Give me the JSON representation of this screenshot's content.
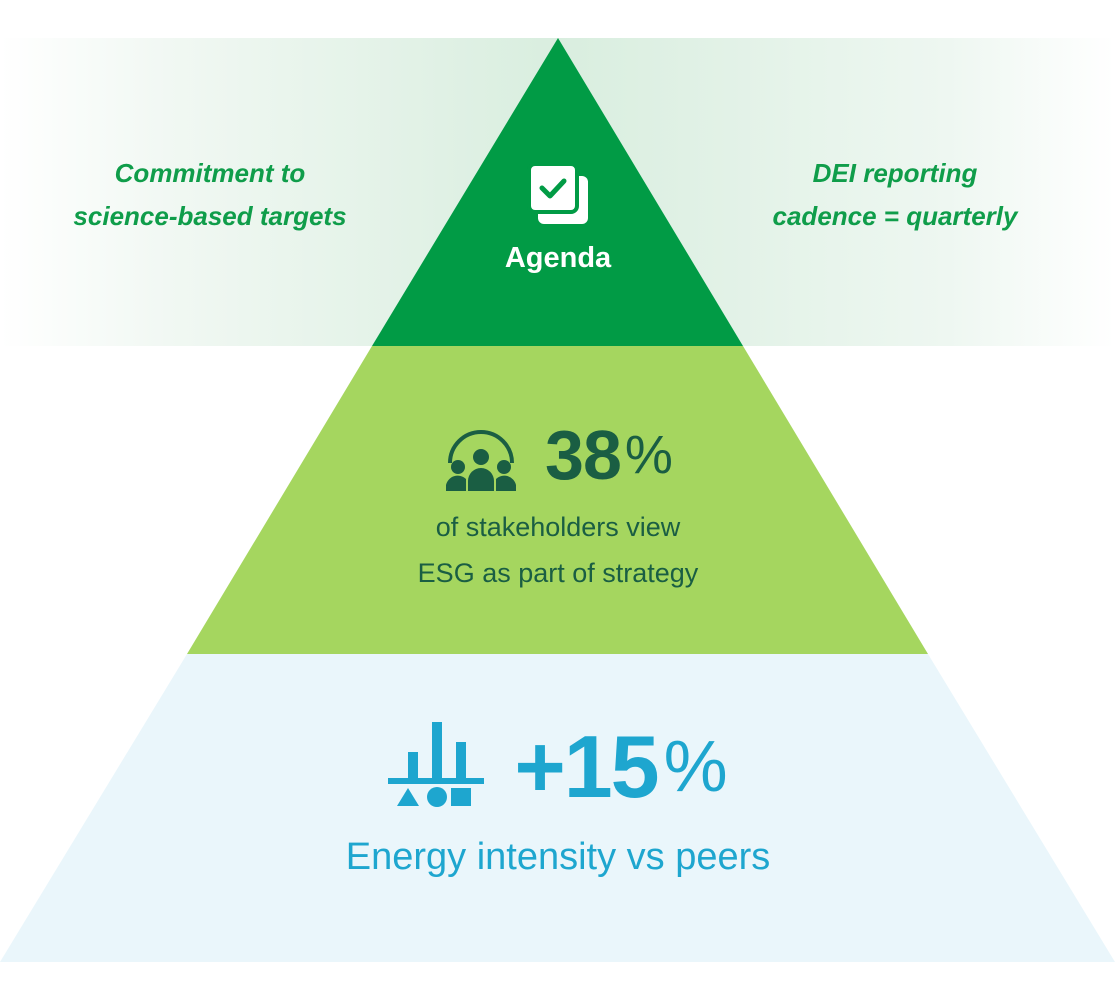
{
  "colors": {
    "top_tier": "#019b45",
    "middle_tier": "#a5d65f",
    "bottom_tier": "#eaf6fb",
    "note_text": "#0f9d4a",
    "middle_text": "#1a5e43",
    "bottom_text": "#1ea6cf"
  },
  "tiers": {
    "top": {
      "icon": "checkbox-stack-icon",
      "label": "Agenda"
    },
    "middle": {
      "icon": "people-group-icon",
      "value": "38",
      "unit": "%",
      "caption_lines": [
        "of stakeholders view",
        "ESG as part of strategy"
      ]
    },
    "bottom": {
      "icon": "bar-chart-shapes-icon",
      "value": "+15",
      "unit": "%",
      "caption": "Energy intensity vs peers"
    }
  },
  "side_notes": {
    "left": [
      "Commitment to",
      "science-based targets"
    ],
    "right": [
      "DEI reporting",
      "cadence = quarterly"
    ]
  }
}
